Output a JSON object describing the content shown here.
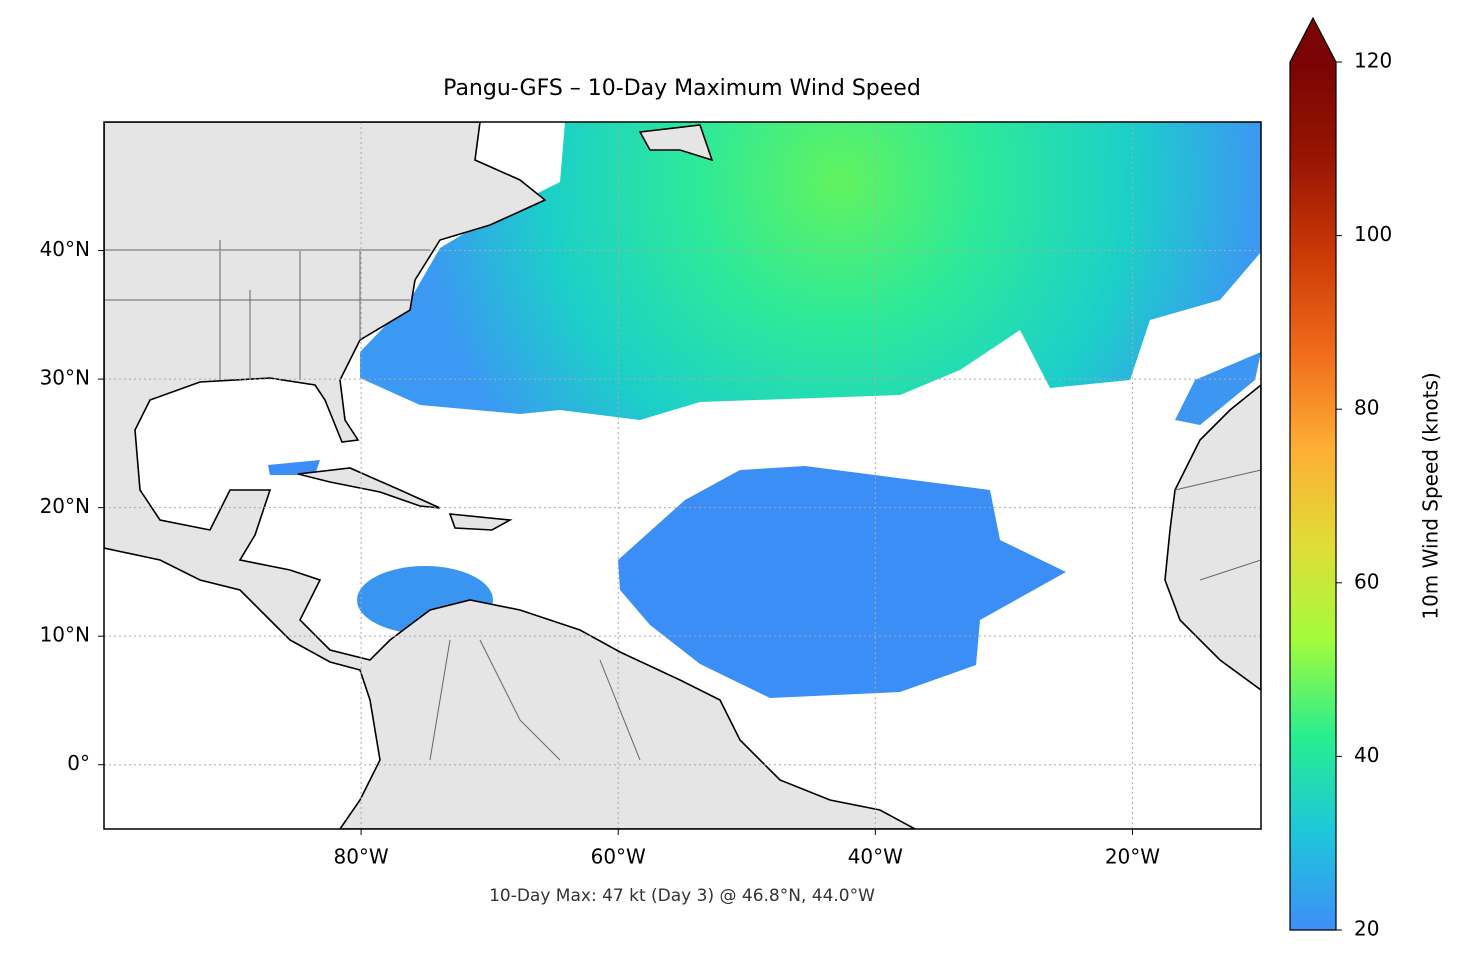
{
  "chart_data": {
    "type": "map",
    "title": "Pangu-GFS – 10-Day Maximum Wind Speed",
    "annotation": "10-Day Max: 47 kt (Day 3) @ 46.8°N, 44.0°W",
    "xlim": [
      -100,
      -10
    ],
    "ylim": [
      -5,
      50
    ],
    "xticks": [
      {
        "value": -80,
        "label": "80°W"
      },
      {
        "value": -60,
        "label": "60°W"
      },
      {
        "value": -40,
        "label": "40°W"
      },
      {
        "value": -20,
        "label": "20°W"
      }
    ],
    "yticks": [
      {
        "value": 0,
        "label": "0°"
      },
      {
        "value": 10,
        "label": "10°N"
      },
      {
        "value": 20,
        "label": "20°N"
      },
      {
        "value": 30,
        "label": "30°N"
      },
      {
        "value": 40,
        "label": "40°N"
      }
    ],
    "grid": true,
    "colorbar": {
      "label": "10m Wind Speed (knots)",
      "lim": [
        20,
        120
      ],
      "ticks": [
        20,
        40,
        60,
        80,
        100,
        120
      ],
      "extend": "max",
      "colors": [
        "#3e8ef7",
        "#1ec6dc",
        "#27ee8f",
        "#a2fb3c",
        "#e1dc37",
        "#fdae35",
        "#f06b1a",
        "#cb3a06",
        "#971503",
        "#7a0403"
      ]
    }
  }
}
